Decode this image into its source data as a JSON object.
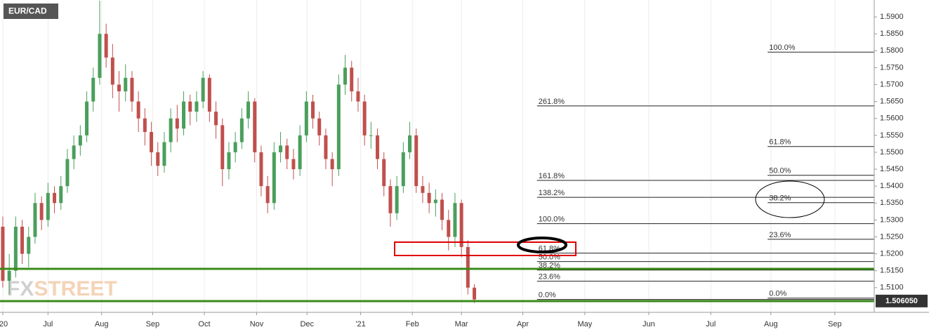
{
  "chart_data": {
    "type": "candlestick",
    "title": "EUR/CAD",
    "watermark": [
      "FX",
      "STREET"
    ],
    "x": [
      0,
      1,
      2,
      3,
      4,
      5,
      6,
      7,
      8,
      9,
      10,
      11,
      12,
      13,
      14,
      15,
      16,
      17,
      18,
      19,
      20,
      21,
      22,
      23,
      24,
      25,
      26,
      27,
      28,
      29,
      30,
      31,
      32,
      33,
      34,
      35,
      36,
      37,
      38,
      39,
      40,
      41,
      42,
      43,
      44,
      45,
      46,
      47,
      48,
      49,
      50,
      51,
      52,
      53,
      54,
      55,
      56,
      57,
      58,
      59,
      60,
      61,
      62,
      63,
      64,
      65,
      66,
      67,
      68,
      69,
      70,
      71,
      72,
      73
    ],
    "candles": [
      [
        1.528,
        1.531,
        1.51,
        1.512
      ],
      [
        1.512,
        1.52,
        1.508,
        1.515
      ],
      [
        1.515,
        1.531,
        1.513,
        1.528
      ],
      [
        1.528,
        1.53,
        1.517,
        1.52
      ],
      [
        1.52,
        1.528,
        1.516,
        1.525
      ],
      [
        1.525,
        1.538,
        1.523,
        1.535
      ],
      [
        1.535,
        1.537,
        1.527,
        1.53
      ],
      [
        1.53,
        1.541,
        1.528,
        1.538
      ],
      [
        1.538,
        1.54,
        1.532,
        1.535
      ],
      [
        1.535,
        1.543,
        1.533,
        1.54
      ],
      [
        1.54,
        1.551,
        1.538,
        1.548
      ],
      [
        1.548,
        1.555,
        1.545,
        1.552
      ],
      [
        1.552,
        1.558,
        1.549,
        1.555
      ],
      [
        1.555,
        1.568,
        1.553,
        1.565
      ],
      [
        1.565,
        1.575,
        1.562,
        1.572
      ],
      [
        1.572,
        1.5948,
        1.57,
        1.585
      ],
      [
        1.585,
        1.588,
        1.575,
        1.578
      ],
      [
        1.578,
        1.582,
        1.566,
        1.57
      ],
      [
        1.57,
        1.574,
        1.562,
        1.568
      ],
      [
        1.568,
        1.576,
        1.565,
        1.572
      ],
      [
        1.572,
        1.574,
        1.562,
        1.565
      ],
      [
        1.565,
        1.568,
        1.556,
        1.56
      ],
      [
        1.56,
        1.563,
        1.552,
        1.556
      ],
      [
        1.556,
        1.559,
        1.546,
        1.55
      ],
      [
        1.55,
        1.553,
        1.543,
        1.546
      ],
      [
        1.546,
        1.556,
        1.544,
        1.553
      ],
      [
        1.553,
        1.563,
        1.55,
        1.56
      ],
      [
        1.56,
        1.564,
        1.553,
        1.557
      ],
      [
        1.557,
        1.568,
        1.555,
        1.565
      ],
      [
        1.565,
        1.567,
        1.558,
        1.562
      ],
      [
        1.562,
        1.568,
        1.559,
        1.565
      ],
      [
        1.565,
        1.574,
        1.563,
        1.572
      ],
      [
        1.572,
        1.573,
        1.559,
        1.562
      ],
      [
        1.562,
        1.565,
        1.554,
        1.558
      ],
      [
        1.558,
        1.56,
        1.54,
        1.545
      ],
      [
        1.545,
        1.553,
        1.542,
        1.55
      ],
      [
        1.55,
        1.556,
        1.547,
        1.553
      ],
      [
        1.553,
        1.563,
        1.551,
        1.56
      ],
      [
        1.56,
        1.568,
        1.557,
        1.565
      ],
      [
        1.565,
        1.566,
        1.547,
        1.55
      ],
      [
        1.55,
        1.552,
        1.537,
        1.54
      ],
      [
        1.54,
        1.543,
        1.532,
        1.535
      ],
      [
        1.535,
        1.553,
        1.533,
        1.55
      ],
      [
        1.55,
        1.556,
        1.547,
        1.552
      ],
      [
        1.552,
        1.554,
        1.545,
        1.548
      ],
      [
        1.548,
        1.551,
        1.542,
        1.545
      ],
      [
        1.545,
        1.558,
        1.543,
        1.555
      ],
      [
        1.555,
        1.568,
        1.553,
        1.565
      ],
      [
        1.565,
        1.567,
        1.557,
        1.56
      ],
      [
        1.56,
        1.562,
        1.552,
        1.555
      ],
      [
        1.555,
        1.557,
        1.545,
        1.548
      ],
      [
        1.548,
        1.55,
        1.54,
        1.545
      ],
      [
        1.545,
        1.573,
        1.543,
        1.57
      ],
      [
        1.57,
        1.5788,
        1.567,
        1.575
      ],
      [
        1.575,
        1.577,
        1.565,
        1.568
      ],
      [
        1.568,
        1.572,
        1.562,
        1.565
      ],
      [
        1.565,
        1.567,
        1.552,
        1.555
      ],
      [
        1.555,
        1.559,
        1.551,
        1.555
      ],
      [
        1.555,
        1.557,
        1.545,
        1.548
      ],
      [
        1.548,
        1.55,
        1.537,
        1.54
      ],
      [
        1.54,
        1.542,
        1.528,
        1.532
      ],
      [
        1.532,
        1.543,
        1.53,
        1.54
      ],
      [
        1.54,
        1.553,
        1.538,
        1.55
      ],
      [
        1.55,
        1.559,
        1.548,
        1.555
      ],
      [
        1.555,
        1.557,
        1.538,
        1.54
      ],
      [
        1.54,
        1.543,
        1.535,
        1.538
      ],
      [
        1.538,
        1.541,
        1.532,
        1.535
      ],
      [
        1.535,
        1.539,
        1.531,
        1.536
      ],
      [
        1.536,
        1.538,
        1.527,
        1.53
      ],
      [
        1.53,
        1.533,
        1.521,
        1.525
      ],
      [
        1.525,
        1.538,
        1.522,
        1.535
      ],
      [
        1.535,
        1.536,
        1.519,
        1.522
      ],
      [
        1.522,
        1.524,
        1.508,
        1.51
      ],
      [
        1.51,
        1.511,
        1.5055,
        1.5065
      ]
    ],
    "up_color": "#4a9f5c",
    "down_color": "#c0504d",
    "xlim": [
      -0.43,
      134.9
    ],
    "xticks": [
      {
        "value": 0,
        "label": "'20"
      },
      {
        "value": 7.0,
        "label": "Jul"
      },
      {
        "value": 15.3,
        "label": "Aug"
      },
      {
        "value": 23.2,
        "label": "Sep"
      },
      {
        "value": 31.2,
        "label": "Oct"
      },
      {
        "value": 39.3,
        "label": "Nov"
      },
      {
        "value": 47.1,
        "label": "Dec"
      },
      {
        "value": 55.4,
        "label": "'21"
      },
      {
        "value": 63.4,
        "label": "Feb"
      },
      {
        "value": 71.0,
        "label": "Mar"
      },
      {
        "value": 80.5,
        "label": "Apr"
      },
      {
        "value": 90.1,
        "label": "May"
      },
      {
        "value": 100.0,
        "label": "Jun"
      },
      {
        "value": 109.6,
        "label": "Jul"
      },
      {
        "value": 118.9,
        "label": "Aug"
      },
      {
        "value": 128.8,
        "label": "Sep"
      }
    ],
    "ylim": [
      1.5027,
      1.595
    ],
    "yticks": [
      {
        "value": 1.51,
        "label": "1.5100"
      },
      {
        "value": 1.515,
        "label": "1.5150"
      },
      {
        "value": 1.52,
        "label": "1.5200"
      },
      {
        "value": 1.525,
        "label": "1.5250"
      },
      {
        "value": 1.53,
        "label": "1.5300"
      },
      {
        "value": 1.535,
        "label": "1.5350"
      },
      {
        "value": 1.54,
        "label": "1.5400"
      },
      {
        "value": 1.545,
        "label": "1.5450"
      },
      {
        "value": 1.55,
        "label": "1.5500"
      },
      {
        "value": 1.555,
        "label": "1.5550"
      },
      {
        "value": 1.56,
        "label": "1.5600"
      },
      {
        "value": 1.565,
        "label": "1.5650"
      },
      {
        "value": 1.57,
        "label": "1.5700"
      },
      {
        "value": 1.575,
        "label": "1.5750"
      },
      {
        "value": 1.58,
        "label": "1.5800"
      },
      {
        "value": 1.585,
        "label": "1.5850"
      },
      {
        "value": 1.59,
        "label": "1.5900"
      }
    ],
    "grid": true,
    "last_price": {
      "value": 1.50605,
      "label": "1.506050"
    },
    "fib_sets": [
      {
        "start": 118.4,
        "levels": [
          {
            "value": 1.5796,
            "label": "100.0%"
          },
          {
            "value": 1.5517,
            "label": "61.8%"
          },
          {
            "value": 1.5432,
            "label": "50.0%"
          },
          {
            "value": 1.5351,
            "label": "38.2%"
          },
          {
            "value": 1.5243,
            "label": "23.6%"
          },
          {
            "value": 1.5069,
            "label": "0.0%"
          }
        ]
      },
      {
        "start": 82.7,
        "levels": [
          {
            "value": 1.5637,
            "label": "261.8%"
          },
          {
            "value": 1.5417,
            "label": "161.8%"
          },
          {
            "value": 1.5367,
            "label": "138.2%"
          },
          {
            "value": 1.5289,
            "label": "100.0%"
          },
          {
            "value": 1.5202,
            "label": "61.8%"
          },
          {
            "value": 1.5177,
            "label": "50.0%"
          },
          {
            "value": 1.5152,
            "label": "38.2%"
          },
          {
            "value": 1.5119,
            "label": "23.6%"
          },
          {
            "value": 1.5065,
            "label": "0.0%"
          }
        ]
      }
    ]
  }
}
